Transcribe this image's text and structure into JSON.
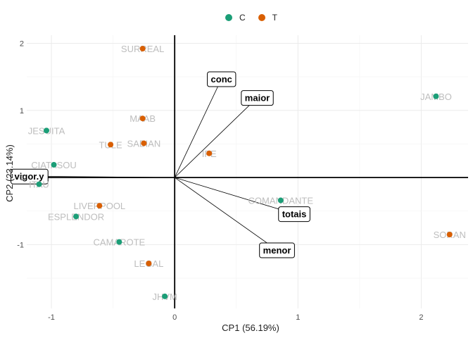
{
  "chart_data": {
    "type": "scatter",
    "title": "",
    "xlabel": "CP1 (56.19%)",
    "ylabel": "CP2 (23.14%)",
    "xlim": [
      -1.2,
      2.38
    ],
    "ylim": [
      -1.95,
      2.12
    ],
    "xticks": [
      -1,
      0,
      1,
      2
    ],
    "yticks": [
      -1,
      0,
      1,
      2
    ],
    "tick_labels_x": [
      "-1",
      "0",
      "1",
      "2"
    ],
    "tick_labels_y": [
      "-1",
      "0",
      "1",
      "2"
    ],
    "grid": true,
    "legend": {
      "position": "top",
      "entries": [
        {
          "label": "C",
          "color": "#1b9e77"
        },
        {
          "label": "T",
          "color": "#d95f02"
        }
      ]
    },
    "points": [
      {
        "label": "SURREAL",
        "group": "T",
        "x": -0.26,
        "y": 1.92
      },
      {
        "label": "JAMBO",
        "group": "C",
        "x": 2.12,
        "y": 1.21
      },
      {
        "label": "JESUITA",
        "group": "C",
        "x": -1.04,
        "y": 0.7
      },
      {
        "label": "MAAB",
        "group": "T",
        "x": -0.26,
        "y": 0.88
      },
      {
        "label": "TULE",
        "group": "T",
        "x": -0.52,
        "y": 0.49
      },
      {
        "label": "SABIAN",
        "group": "T",
        "x": -0.25,
        "y": 0.51
      },
      {
        "label": "IPE",
        "group": "T",
        "x": 0.28,
        "y": 0.36
      },
      {
        "label": "CIATASOU",
        "group": "C",
        "x": -0.98,
        "y": 0.19
      },
      {
        "label": "ITAU",
        "group": "C",
        "x": -1.1,
        "y": -0.1
      },
      {
        "label": "COMANDANTE",
        "group": "C",
        "x": 0.86,
        "y": -0.34
      },
      {
        "label": "LIVERPOOL",
        "group": "T",
        "x": -0.61,
        "y": -0.42
      },
      {
        "label": "ESPLENDOR",
        "group": "C",
        "x": -0.8,
        "y": -0.58
      },
      {
        "label": "SORAN",
        "group": "T",
        "x": 2.23,
        "y": -0.85
      },
      {
        "label": "CAMAROTE",
        "group": "C",
        "x": -0.45,
        "y": -0.96
      },
      {
        "label": "LEGAL",
        "group": "T",
        "x": -0.21,
        "y": -1.28
      },
      {
        "label": "JHVM",
        "group": "C",
        "x": -0.08,
        "y": -1.77
      }
    ],
    "vectors": [
      {
        "label": "conc",
        "x": 0.38,
        "y": 1.47
      },
      {
        "label": "maior",
        "x": 0.67,
        "y": 1.19
      },
      {
        "label": "vigor.y",
        "x": -1.18,
        "y": 0.02
      },
      {
        "label": "totais",
        "x": 0.97,
        "y": -0.54
      },
      {
        "label": "menor",
        "x": 0.83,
        "y": -1.08
      }
    ]
  }
}
